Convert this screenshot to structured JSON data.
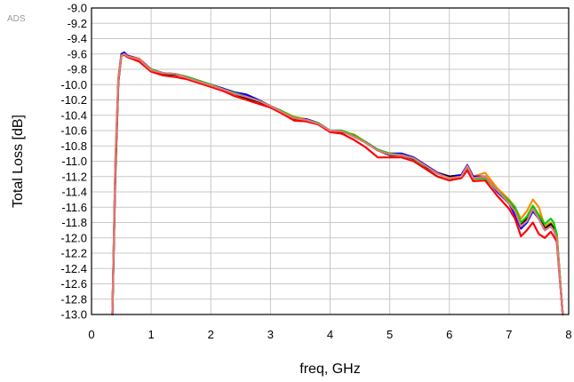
{
  "watermark": "ADS",
  "chart_data": {
    "type": "line",
    "title": "",
    "xlabel": "freq, GHz",
    "ylabel": "Total Loss [dB]",
    "xlim": [
      0,
      8
    ],
    "ylim": [
      -13.0,
      -9.0
    ],
    "xticks": [
      0,
      1,
      2,
      3,
      4,
      5,
      6,
      7,
      8
    ],
    "xtick_labels": [
      "0",
      "1",
      "2",
      "3",
      "4",
      "5",
      "6",
      "7",
      "8"
    ],
    "yticks": [
      -9.0,
      -9.2,
      -9.4,
      -9.6,
      -9.8,
      -10.0,
      -10.2,
      -10.4,
      -10.6,
      -10.8,
      -11.0,
      -11.2,
      -11.4,
      -11.6,
      -11.8,
      -12.0,
      -12.2,
      -12.4,
      -12.6,
      -12.8,
      -13.0
    ],
    "ytick_labels": [
      "-9.0",
      "-9.2",
      "-9.4",
      "-9.6",
      "-9.8",
      "-10.0",
      "-10.2",
      "-10.4",
      "-10.6",
      "-10.8",
      "-11.0",
      "-11.2",
      "-11.4",
      "-11.6",
      "-11.8",
      "-12.0",
      "-12.2",
      "-12.4",
      "-12.6",
      "-12.8",
      "-13.0"
    ],
    "grid": true,
    "legend": "none",
    "x": [
      0.35,
      0.4,
      0.45,
      0.5,
      0.55,
      0.6,
      0.8,
      1.0,
      1.2,
      1.4,
      1.6,
      1.8,
      2.0,
      2.2,
      2.4,
      2.6,
      2.8,
      3.0,
      3.2,
      3.4,
      3.6,
      3.8,
      4.0,
      4.2,
      4.4,
      4.6,
      4.8,
      5.0,
      5.2,
      5.4,
      5.6,
      5.8,
      6.0,
      6.2,
      6.3,
      6.4,
      6.6,
      6.8,
      7.0,
      7.1,
      7.2,
      7.3,
      7.4,
      7.5,
      7.6,
      7.7,
      7.75,
      7.8,
      7.9
    ],
    "series": [
      {
        "color": "#ff8c00",
        "values": [
          -13.0,
          -11.0,
          -9.9,
          -9.6,
          -9.6,
          -9.62,
          -9.66,
          -9.8,
          -9.85,
          -9.86,
          -9.9,
          -9.95,
          -10.0,
          -10.05,
          -10.1,
          -10.15,
          -10.2,
          -10.28,
          -10.35,
          -10.42,
          -10.45,
          -10.5,
          -10.6,
          -10.62,
          -10.65,
          -10.75,
          -10.85,
          -10.9,
          -10.9,
          -10.95,
          -11.05,
          -11.15,
          -11.2,
          -11.2,
          -11.05,
          -11.2,
          -11.15,
          -11.35,
          -11.5,
          -11.6,
          -11.75,
          -11.65,
          -11.5,
          -11.6,
          -11.85,
          -11.8,
          -11.85,
          -11.95,
          -13.0
        ]
      },
      {
        "color": "#0000ff",
        "values": [
          -13.0,
          -11.1,
          -9.95,
          -9.6,
          -9.58,
          -9.62,
          -9.67,
          -9.8,
          -9.85,
          -9.86,
          -9.9,
          -9.95,
          -10.0,
          -10.05,
          -10.1,
          -10.13,
          -10.2,
          -10.28,
          -10.35,
          -10.45,
          -10.45,
          -10.5,
          -10.6,
          -10.6,
          -10.68,
          -10.75,
          -10.85,
          -10.9,
          -10.9,
          -10.95,
          -11.05,
          -11.15,
          -11.2,
          -11.18,
          -11.05,
          -11.2,
          -11.2,
          -11.4,
          -11.55,
          -11.7,
          -11.88,
          -11.8,
          -11.65,
          -11.75,
          -11.9,
          -11.85,
          -11.9,
          -12.0,
          -13.0
        ]
      },
      {
        "color": "#000000",
        "values": [
          -13.0,
          -11.2,
          -9.97,
          -9.62,
          -9.6,
          -9.63,
          -9.68,
          -9.82,
          -9.86,
          -9.87,
          -9.9,
          -9.96,
          -10.02,
          -10.07,
          -10.12,
          -10.18,
          -10.22,
          -10.29,
          -10.36,
          -10.45,
          -10.46,
          -10.52,
          -10.6,
          -10.62,
          -10.66,
          -10.76,
          -10.86,
          -10.92,
          -10.92,
          -10.97,
          -11.07,
          -11.16,
          -11.2,
          -11.2,
          -11.07,
          -11.22,
          -11.2,
          -11.38,
          -11.55,
          -11.62,
          -11.82,
          -11.75,
          -11.6,
          -11.72,
          -11.88,
          -11.82,
          -11.88,
          -11.98,
          -13.0
        ]
      },
      {
        "color": "#00d000",
        "values": [
          -13.0,
          -11.1,
          -9.95,
          -9.63,
          -9.61,
          -9.64,
          -9.68,
          -9.8,
          -9.85,
          -9.86,
          -9.9,
          -9.95,
          -10.0,
          -10.06,
          -10.11,
          -10.16,
          -10.21,
          -10.28,
          -10.35,
          -10.43,
          -10.46,
          -10.5,
          -10.6,
          -10.6,
          -10.66,
          -10.75,
          -10.85,
          -10.9,
          -10.92,
          -10.96,
          -11.1,
          -11.2,
          -11.25,
          -11.2,
          -11.08,
          -11.23,
          -11.22,
          -11.38,
          -11.52,
          -11.6,
          -11.8,
          -11.72,
          -11.58,
          -11.7,
          -11.82,
          -11.75,
          -11.8,
          -11.95,
          -13.0
        ]
      },
      {
        "color": "#ff0000",
        "values": [
          -13.0,
          -11.1,
          -9.95,
          -9.62,
          -9.61,
          -9.64,
          -9.7,
          -9.83,
          -9.88,
          -9.9,
          -9.93,
          -9.98,
          -10.03,
          -10.08,
          -10.15,
          -10.2,
          -10.25,
          -10.3,
          -10.38,
          -10.47,
          -10.48,
          -10.52,
          -10.62,
          -10.64,
          -10.72,
          -10.82,
          -10.95,
          -10.95,
          -10.95,
          -11.0,
          -11.1,
          -11.2,
          -11.25,
          -11.22,
          -11.12,
          -11.26,
          -11.25,
          -11.45,
          -11.62,
          -11.75,
          -11.98,
          -11.9,
          -11.8,
          -11.95,
          -12.0,
          -11.92,
          -11.98,
          -12.05,
          -13.0
        ]
      },
      {
        "color": "#e07878",
        "values": [
          -13.0,
          -11.0,
          -9.93,
          -9.62,
          -9.6,
          -9.63,
          -9.67,
          -9.81,
          -9.85,
          -9.86,
          -9.91,
          -9.96,
          -10.01,
          -10.06,
          -10.12,
          -10.16,
          -10.21,
          -10.28,
          -10.36,
          -10.44,
          -10.46,
          -10.51,
          -10.6,
          -10.61,
          -10.68,
          -10.76,
          -10.86,
          -10.91,
          -10.92,
          -10.96,
          -11.06,
          -11.16,
          -11.22,
          -11.2,
          -11.06,
          -11.22,
          -11.2,
          -11.38,
          -11.55,
          -11.65,
          -11.85,
          -11.78,
          -11.62,
          -11.75,
          -11.9,
          -11.85,
          -11.9,
          -12.0,
          -13.0
        ]
      }
    ]
  }
}
